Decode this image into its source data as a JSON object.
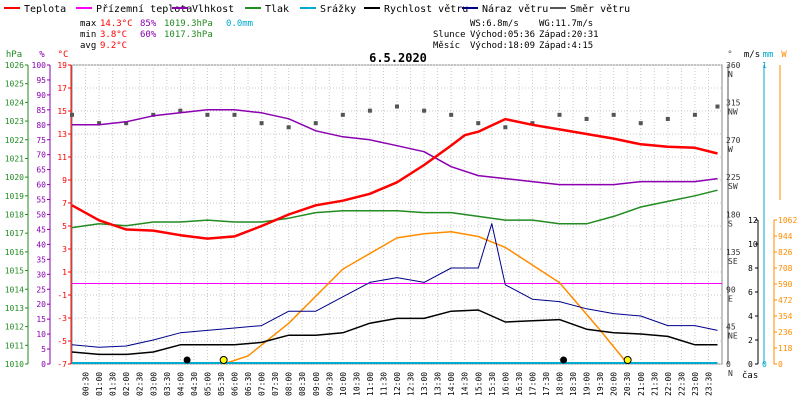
{
  "legend": [
    {
      "label": "Teplota",
      "color": "#ff0000"
    },
    {
      "label": "Přízemní teplota",
      "color": "#ff00ff"
    },
    {
      "label": "Vlhkost",
      "color": "#8b00b0"
    },
    {
      "label": "Tlak",
      "color": "#228b22"
    },
    {
      "label": "Srážky",
      "color": "#00aacc"
    },
    {
      "label": "Rychlost větru",
      "color": "#000000"
    },
    {
      "label": "Náraz větru",
      "color": "#00008b"
    },
    {
      "label": "Směr větru",
      "color": "#555555"
    }
  ],
  "stats": {
    "rows": [
      {
        "label": "max",
        "temp": "14.3°C",
        "hum": "85%",
        "press": "1019.3hPa",
        "rain": "0.0mm"
      },
      {
        "label": "min",
        "temp": "3.8°C",
        "hum": "60%",
        "press": "1017.3hPa",
        "rain": ""
      },
      {
        "label": "avg",
        "temp": "9.2°C",
        "hum": "",
        "press": "",
        "rain": ""
      }
    ],
    "ws": "WS:6.8m/s",
    "wg": "WG:11.7m/s",
    "sun": {
      "label": "Slunce",
      "rise": "Východ:05:36",
      "set": "Západ:20:31"
    },
    "moon": {
      "label": "Měsíc",
      "rise": "Východ:18:09",
      "set": "Západ:4:15"
    }
  },
  "colors": {
    "temp": "#ff0000",
    "ground": "#ff00ff",
    "hum": "#8b00b0",
    "press": "#228b22",
    "rain": "#00aacc",
    "wind": "#000000",
    "gust": "#00008b",
    "dir": "#555555",
    "sun": "#ff8c00",
    "grid": "#c8c8c8"
  },
  "chart_data": {
    "type": "line",
    "title": "6.5.2020",
    "xlabel": "čas",
    "x_ticks": [
      "00:30",
      "01:00",
      "01:30",
      "02:00",
      "02:30",
      "03:00",
      "03:30",
      "04:00",
      "04:30",
      "05:00",
      "05:30",
      "06:00",
      "06:30",
      "07:00",
      "07:30",
      "08:00",
      "08:30",
      "09:00",
      "09:30",
      "10:00",
      "10:30",
      "11:00",
      "11:30",
      "12:00",
      "12:30",
      "13:00",
      "13:30",
      "14:00",
      "14:30",
      "15:00",
      "15:30",
      "16:00",
      "16:30",
      "17:00",
      "17:30",
      "18:00",
      "18:30",
      "19:00",
      "19:30",
      "20:00",
      "20:30",
      "21:00",
      "21:30",
      "22:00",
      "22:30",
      "23:00",
      "23:30"
    ],
    "x_range": [
      "00:00",
      "24:00"
    ],
    "axes": {
      "pressure": {
        "unit": "hPa",
        "min": 1010,
        "max": 1026,
        "ticks": [
          1010,
          1011,
          1012,
          1013,
          1014,
          1015,
          1016,
          1017,
          1018,
          1019,
          1020,
          1021,
          1022,
          1023,
          1024,
          1025,
          1026
        ]
      },
      "humidity": {
        "unit": "%",
        "min": 0,
        "max": 100,
        "ticks": [
          0,
          5,
          10,
          15,
          20,
          25,
          30,
          35,
          40,
          45,
          50,
          55,
          60,
          65,
          70,
          75,
          80,
          85,
          90,
          95,
          100
        ]
      },
      "temperature": {
        "unit": "°C",
        "min": -7,
        "max": 19,
        "ticks": [
          -7,
          -5,
          -3,
          -1,
          1,
          3,
          5,
          7,
          9,
          11,
          13,
          15,
          17,
          19
        ]
      },
      "direction": {
        "unit": "°",
        "min": 0,
        "max": 360,
        "ticks": [
          0,
          45,
          90,
          135,
          180,
          225,
          270,
          315,
          360
        ],
        "labels": [
          "N",
          "NE",
          "E",
          "SE",
          "S",
          "SW",
          "W",
          "NW",
          "N"
        ]
      },
      "wind_speed": {
        "unit": "m/s",
        "min": 0,
        "max": 12,
        "ticks": [
          0,
          2,
          4,
          6,
          8,
          10,
          12
        ]
      },
      "rain": {
        "unit": "mm",
        "min": 0,
        "max": 1,
        "ticks": [
          0,
          1
        ]
      },
      "solar": {
        "unit": "W",
        "min": 0,
        "max": 1062,
        "ticks": [
          0,
          118,
          236,
          354,
          472,
          590,
          708,
          826,
          944,
          1062
        ]
      }
    },
    "series": [
      {
        "name": "Teplota",
        "unit": "°C",
        "x": [
          "00:00",
          "01:00",
          "02:00",
          "03:00",
          "04:00",
          "05:00",
          "06:00",
          "07:00",
          "08:00",
          "09:00",
          "10:00",
          "11:00",
          "12:00",
          "13:00",
          "14:00",
          "14:30",
          "15:00",
          "16:00",
          "17:00",
          "18:00",
          "19:00",
          "20:00",
          "21:00",
          "22:00",
          "23:00",
          "23:50"
        ],
        "values": [
          6.8,
          5.5,
          4.7,
          4.6,
          4.2,
          3.9,
          4.1,
          5.0,
          6.0,
          6.8,
          7.2,
          7.8,
          8.8,
          10.3,
          12.0,
          12.9,
          13.2,
          14.3,
          13.8,
          13.4,
          13.0,
          12.6,
          12.1,
          11.9,
          11.8,
          11.3
        ]
      },
      {
        "name": "Vlhkost",
        "unit": "%",
        "x": [
          "00:00",
          "01:00",
          "02:00",
          "03:00",
          "04:00",
          "05:00",
          "06:00",
          "07:00",
          "08:00",
          "09:00",
          "10:00",
          "11:00",
          "12:00",
          "13:00",
          "14:00",
          "15:00",
          "16:00",
          "17:00",
          "18:00",
          "19:00",
          "20:00",
          "21:00",
          "22:00",
          "23:00",
          "23:50"
        ],
        "values": [
          80,
          80,
          81,
          83,
          84,
          85,
          85,
          84,
          82,
          78,
          76,
          75,
          73,
          71,
          66,
          63,
          62,
          61,
          60,
          60,
          60,
          61,
          61,
          61,
          62
        ]
      },
      {
        "name": "Tlak",
        "unit": "hPa",
        "x": [
          "00:00",
          "01:00",
          "02:00",
          "03:00",
          "04:00",
          "05:00",
          "06:00",
          "07:00",
          "08:00",
          "09:00",
          "10:00",
          "11:00",
          "12:00",
          "13:00",
          "14:00",
          "15:00",
          "16:00",
          "17:00",
          "18:00",
          "19:00",
          "20:00",
          "21:00",
          "22:00",
          "23:00",
          "23:50"
        ],
        "values": [
          1017.3,
          1017.5,
          1017.4,
          1017.6,
          1017.6,
          1017.7,
          1017.6,
          1017.6,
          1017.8,
          1018.1,
          1018.2,
          1018.2,
          1018.2,
          1018.1,
          1018.1,
          1017.9,
          1017.7,
          1017.7,
          1017.5,
          1017.5,
          1017.9,
          1018.4,
          1018.7,
          1019.0,
          1019.3
        ]
      },
      {
        "name": "Rychlost větru",
        "unit": "m/s",
        "x": [
          "00:00",
          "01:00",
          "02:00",
          "03:00",
          "04:00",
          "05:00",
          "06:00",
          "07:00",
          "08:00",
          "09:00",
          "10:00",
          "11:00",
          "12:00",
          "13:00",
          "14:00",
          "15:00",
          "16:00",
          "17:00",
          "18:00",
          "19:00",
          "20:00",
          "21:00",
          "22:00",
          "23:00",
          "23:50"
        ],
        "values": [
          1.0,
          0.8,
          0.8,
          1.0,
          1.6,
          1.6,
          1.6,
          1.8,
          2.4,
          2.4,
          2.6,
          3.4,
          3.8,
          3.8,
          4.4,
          4.5,
          3.5,
          3.6,
          3.7,
          2.9,
          2.6,
          2.5,
          2.3,
          1.6,
          1.6
        ]
      },
      {
        "name": "Náraz větru",
        "unit": "m/s",
        "x": [
          "00:00",
          "01:00",
          "02:00",
          "03:00",
          "04:00",
          "05:00",
          "06:00",
          "07:00",
          "08:00",
          "09:00",
          "10:00",
          "11:00",
          "12:00",
          "13:00",
          "14:00",
          "15:00",
          "15:30",
          "16:00",
          "17:00",
          "18:00",
          "19:00",
          "20:00",
          "21:00",
          "22:00",
          "23:00",
          "23:50"
        ],
        "values": [
          1.6,
          1.4,
          1.5,
          2.0,
          2.6,
          2.8,
          3.0,
          3.2,
          4.4,
          4.4,
          5.6,
          6.8,
          7.2,
          6.8,
          8.0,
          8.0,
          11.7,
          6.6,
          5.4,
          5.2,
          4.6,
          4.2,
          4.0,
          3.2,
          3.2,
          2.8
        ]
      },
      {
        "name": "Směr větru",
        "unit": "°",
        "x": [
          "00:00",
          "01:00",
          "02:00",
          "03:00",
          "04:00",
          "05:00",
          "06:00",
          "07:00",
          "08:00",
          "09:00",
          "10:00",
          "11:00",
          "12:00",
          "13:00",
          "14:00",
          "15:00",
          "16:00",
          "17:00",
          "18:00",
          "19:00",
          "20:00",
          "21:00",
          "22:00",
          "23:00",
          "23:50"
        ],
        "values": [
          300,
          290,
          290,
          300,
          305,
          300,
          300,
          290,
          285,
          290,
          300,
          305,
          310,
          305,
          300,
          290,
          285,
          290,
          300,
          295,
          300,
          290,
          295,
          300,
          310
        ]
      },
      {
        "name": "Slunce",
        "unit": "W",
        "x": [
          "05:36",
          "06:30",
          "08:00",
          "10:00",
          "12:00",
          "13:00",
          "14:00",
          "15:00",
          "16:00",
          "18:00",
          "19:30",
          "20:31"
        ],
        "values": [
          0,
          60,
          300,
          700,
          930,
          960,
          975,
          940,
          860,
          600,
          250,
          0
        ]
      },
      {
        "name": "Srážky",
        "unit": "mm",
        "x": [
          "00:00",
          "23:50"
        ],
        "values": [
          0.0,
          0.0
        ]
      }
    ],
    "markers": [
      {
        "kind": "moonset",
        "time": "04:15"
      },
      {
        "kind": "sunrise",
        "time": "05:36"
      },
      {
        "kind": "moonrise",
        "time": "18:09"
      },
      {
        "kind": "sunset",
        "time": "20:31"
      }
    ]
  }
}
